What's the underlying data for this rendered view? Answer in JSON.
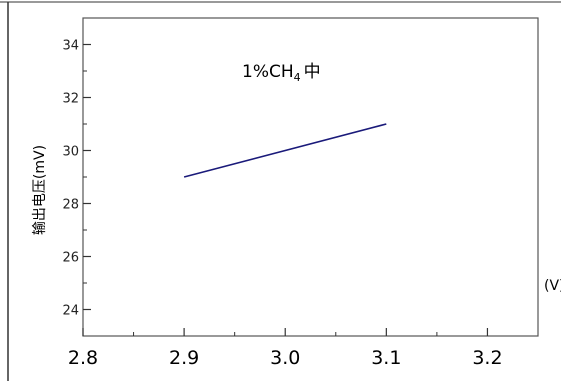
{
  "chart_data": {
    "type": "line",
    "title_main": "1%CH",
    "title_sub": "4",
    "title_tail": "中",
    "ylabel": "输出电压(mV)",
    "xlabel": "(V)",
    "xlim": [
      2.8,
      3.25
    ],
    "ylim": [
      23,
      35
    ],
    "xticks": [
      2.8,
      2.9,
      3.0,
      3.1,
      3.2
    ],
    "xtick_labels": [
      "2.8",
      "2.9",
      "3.0",
      "3.1",
      "3.2"
    ],
    "yticks": [
      24,
      26,
      28,
      30,
      32,
      34
    ],
    "ytick_labels": [
      "24",
      "26",
      "28",
      "30",
      "32",
      "34"
    ],
    "grid": false,
    "line_color": "#1a1a7a",
    "series": [
      {
        "x": [
          2.9,
          3.1
        ],
        "y": [
          29.0,
          31.0
        ]
      }
    ]
  }
}
